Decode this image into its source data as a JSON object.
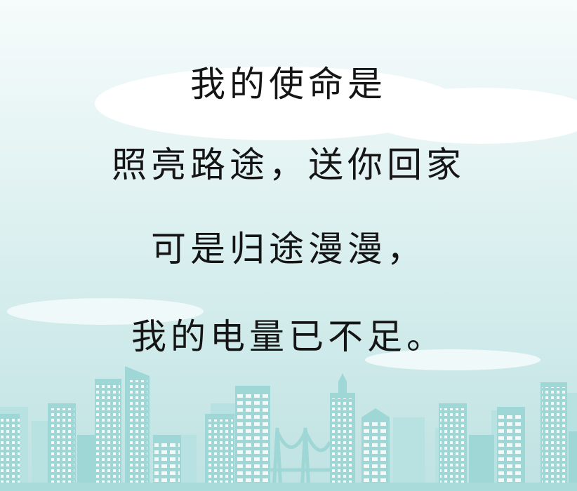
{
  "poem": {
    "lines": [
      "我的使命是",
      "照亮路途，送你回家",
      "可是归途漫漫，",
      "我的电量已不足。"
    ]
  },
  "colors": {
    "sky_top": "#f6fbfb",
    "sky_bottom": "#bfe2e2",
    "building_light": "#a9dbdb",
    "building_mid": "#8fcfcf",
    "window": "#ffffff",
    "text": "#151515"
  }
}
